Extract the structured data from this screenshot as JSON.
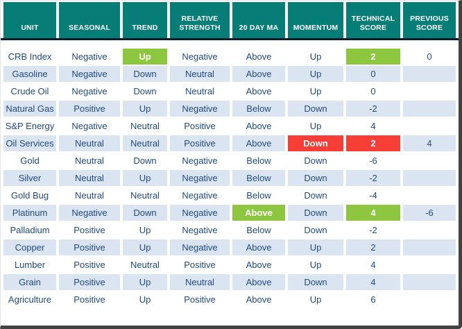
{
  "table": {
    "columns": [
      {
        "label": "UNIT"
      },
      {
        "label": "SEASONAL"
      },
      {
        "label": "TREND"
      },
      {
        "label": "RELATIVE STRENGTH"
      },
      {
        "label": "20 DAY MA"
      },
      {
        "label": "MOMENTUM"
      },
      {
        "label": "TECHNICAL SCORE"
      },
      {
        "label": "PREVIOUS SCORE"
      }
    ],
    "rows": [
      {
        "cells": [
          {
            "t": "CRB Index"
          },
          {
            "t": "Negative"
          },
          {
            "t": "Up",
            "hl": "green"
          },
          {
            "t": "Negative"
          },
          {
            "t": "Above"
          },
          {
            "t": "Up"
          },
          {
            "t": "2",
            "hl": "green"
          },
          {
            "t": "0"
          }
        ]
      },
      {
        "cells": [
          {
            "t": "Gasoline"
          },
          {
            "t": "Negative"
          },
          {
            "t": "Down"
          },
          {
            "t": "Neutral"
          },
          {
            "t": "Above"
          },
          {
            "t": "Up"
          },
          {
            "t": "0"
          },
          {
            "t": ""
          }
        ]
      },
      {
        "cells": [
          {
            "t": "Crude Oil"
          },
          {
            "t": "Negative"
          },
          {
            "t": "Down"
          },
          {
            "t": "Neutral"
          },
          {
            "t": "Above"
          },
          {
            "t": "Up"
          },
          {
            "t": "0"
          },
          {
            "t": ""
          }
        ]
      },
      {
        "cells": [
          {
            "t": "Natural Gas"
          },
          {
            "t": "Positive"
          },
          {
            "t": "Up"
          },
          {
            "t": "Negative"
          },
          {
            "t": "Below"
          },
          {
            "t": "Down"
          },
          {
            "t": "-2"
          },
          {
            "t": ""
          }
        ]
      },
      {
        "cells": [
          {
            "t": "S&P Energy"
          },
          {
            "t": "Negative"
          },
          {
            "t": "Neutral"
          },
          {
            "t": "Positive"
          },
          {
            "t": "Above"
          },
          {
            "t": "Up"
          },
          {
            "t": "4"
          },
          {
            "t": ""
          }
        ]
      },
      {
        "cells": [
          {
            "t": "Oil Services"
          },
          {
            "t": "Neutral"
          },
          {
            "t": "Neutral"
          },
          {
            "t": "Positive"
          },
          {
            "t": "Above"
          },
          {
            "t": "Down",
            "hl": "red"
          },
          {
            "t": "2",
            "hl": "red"
          },
          {
            "t": "4"
          }
        ]
      },
      {
        "cells": [
          {
            "t": "Gold"
          },
          {
            "t": "Neutral"
          },
          {
            "t": "Down"
          },
          {
            "t": "Negative"
          },
          {
            "t": "Below"
          },
          {
            "t": "Down"
          },
          {
            "t": "-6"
          },
          {
            "t": ""
          }
        ]
      },
      {
        "cells": [
          {
            "t": "Silver"
          },
          {
            "t": "Neutral"
          },
          {
            "t": "Up"
          },
          {
            "t": "Negative"
          },
          {
            "t": "Below"
          },
          {
            "t": "Down"
          },
          {
            "t": "-2"
          },
          {
            "t": ""
          }
        ]
      },
      {
        "cells": [
          {
            "t": "Gold Bug"
          },
          {
            "t": "Neutral"
          },
          {
            "t": "Neutral"
          },
          {
            "t": "Negative"
          },
          {
            "t": "Below"
          },
          {
            "t": "Down"
          },
          {
            "t": "-4"
          },
          {
            "t": ""
          }
        ]
      },
      {
        "cells": [
          {
            "t": "Platinum"
          },
          {
            "t": "Negative"
          },
          {
            "t": "Down"
          },
          {
            "t": "Negative"
          },
          {
            "t": "Above",
            "hl": "green"
          },
          {
            "t": "Down"
          },
          {
            "t": "4",
            "hl": "green"
          },
          {
            "t": "-6"
          }
        ]
      },
      {
        "cells": [
          {
            "t": "Palladium"
          },
          {
            "t": "Positive"
          },
          {
            "t": "Up"
          },
          {
            "t": "Negative"
          },
          {
            "t": "Below"
          },
          {
            "t": "Down"
          },
          {
            "t": "-2"
          },
          {
            "t": ""
          }
        ]
      },
      {
        "cells": [
          {
            "t": "Copper"
          },
          {
            "t": "Positive"
          },
          {
            "t": "Up"
          },
          {
            "t": "Negative"
          },
          {
            "t": "Above"
          },
          {
            "t": "Up"
          },
          {
            "t": "2"
          },
          {
            "t": ""
          }
        ]
      },
      {
        "cells": [
          {
            "t": "Lumber"
          },
          {
            "t": "Positive"
          },
          {
            "t": "Neutral"
          },
          {
            "t": "Positive"
          },
          {
            "t": "Above"
          },
          {
            "t": "Up"
          },
          {
            "t": "4"
          },
          {
            "t": ""
          }
        ]
      },
      {
        "cells": [
          {
            "t": "Grain"
          },
          {
            "t": "Positive"
          },
          {
            "t": "Up"
          },
          {
            "t": "Neutral"
          },
          {
            "t": "Above"
          },
          {
            "t": "Down"
          },
          {
            "t": "4"
          },
          {
            "t": ""
          }
        ]
      },
      {
        "cells": [
          {
            "t": "Agriculture"
          },
          {
            "t": "Positive"
          },
          {
            "t": "Up"
          },
          {
            "t": "Positive"
          },
          {
            "t": "Above"
          },
          {
            "t": "Up"
          },
          {
            "t": "6"
          },
          {
            "t": ""
          }
        ]
      }
    ]
  },
  "colors": {
    "header_bg": "#077d78",
    "highlight_green": "#8dc63f",
    "highlight_red": "#f93e38",
    "row_alt_bg": "#dbe5f1",
    "text": "#1f497d",
    "header_text": "#ffffff",
    "divider": "#0c1a2b"
  }
}
